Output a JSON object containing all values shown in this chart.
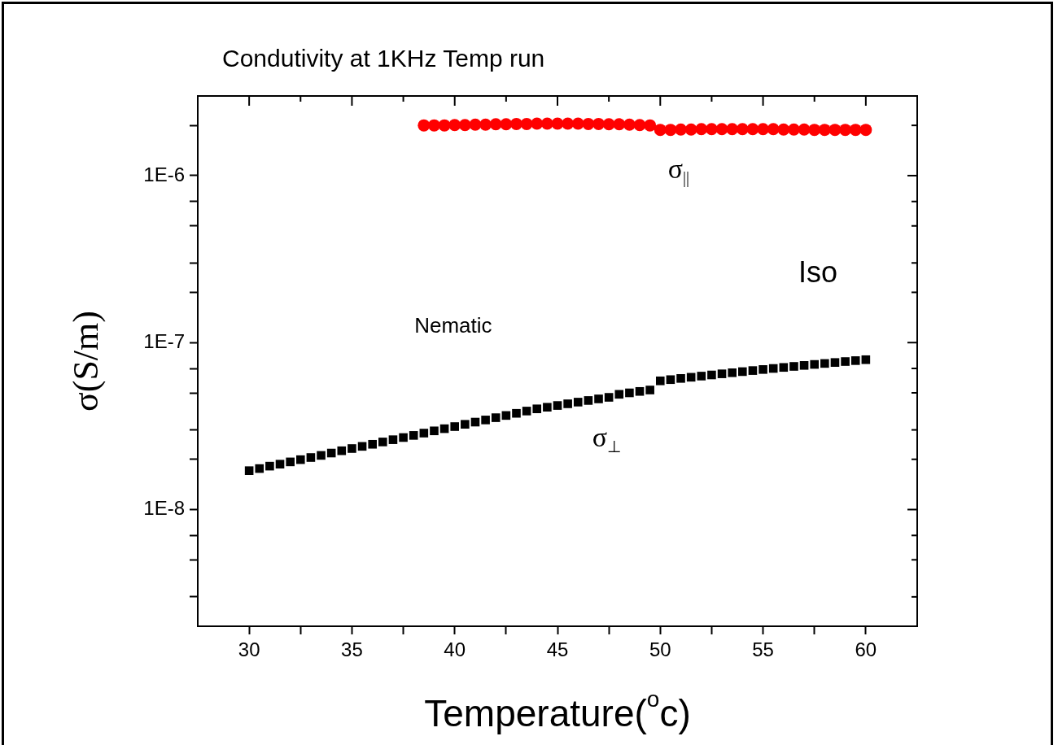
{
  "chart_data": {
    "type": "scatter",
    "title": "Condutivity at 1KHz Temp run",
    "xlabel": "Temperature($^{o}$c)",
    "ylabel": "σ(S/m)",
    "log": "y",
    "xlim": [
      27.5,
      62.5
    ],
    "xticks": [
      30,
      {
        "value": 32.5,
        "label": null
      },
      35,
      {
        "value": 37.5,
        "label": null
      },
      40,
      {
        "value": 42.5,
        "label": null
      },
      45,
      {
        "value": 47.5,
        "label": null
      },
      50,
      {
        "value": 52.5,
        "label": null
      },
      55,
      {
        "value": 57.5,
        "label": null
      },
      60
    ],
    "ylim": [
      2e-09,
      3e-06
    ],
    "yticks": [
      {
        "value": 3e-09,
        "label": null
      },
      {
        "value": 5e-09,
        "label": null
      },
      {
        "value": 7e-09,
        "label": null
      },
      {
        "value": 1e-08,
        "label": "1E-8"
      },
      {
        "value": 2e-08,
        "label": null
      },
      {
        "value": 3e-08,
        "label": null
      },
      {
        "value": 5e-08,
        "label": null
      },
      {
        "value": 7e-08,
        "label": null
      },
      {
        "value": 1e-07,
        "label": "1E-7"
      },
      {
        "value": 2e-07,
        "label": null
      },
      {
        "value": 3e-07,
        "label": null
      },
      {
        "value": 5e-07,
        "label": null
      },
      {
        "value": 7e-07,
        "label": null
      },
      {
        "value": 1e-06,
        "label": "1E-6"
      },
      {
        "value": 2e-06,
        "label": null
      }
    ],
    "series": [
      {
        "name": "σ$_{||}$",
        "color": "#ff0000",
        "marker": "circle",
        "x": [
          38.5,
          39,
          39.5,
          40,
          40.5,
          41,
          41.5,
          42,
          42.5,
          43,
          43.5,
          44,
          44.5,
          45,
          45.5,
          46,
          46.5,
          47,
          47.5,
          48,
          48.5,
          49,
          49.5,
          50,
          50.5,
          51,
          51.5,
          52,
          52.5,
          53,
          53.5,
          54,
          54.5,
          55,
          55.5,
          56,
          56.5,
          57,
          57.5,
          58,
          58.5,
          59,
          59.5,
          60
        ],
        "values": [
          2e-06,
          2e-06,
          2e-06,
          2.01e-06,
          2.01e-06,
          2.02e-06,
          2.02e-06,
          2.03e-06,
          2.03e-06,
          2.04e-06,
          2.04e-06,
          2.05e-06,
          2.05e-06,
          2.05e-06,
          2.05e-06,
          2.05e-06,
          2.04e-06,
          2.04e-06,
          2.03e-06,
          2.03e-06,
          2.02e-06,
          2.01e-06,
          2e-06,
          1.88e-06,
          1.88e-06,
          1.89e-06,
          1.89e-06,
          1.9e-06,
          1.9e-06,
          1.9e-06,
          1.9e-06,
          1.9e-06,
          1.9e-06,
          1.9e-06,
          1.9e-06,
          1.89e-06,
          1.89e-06,
          1.89e-06,
          1.88e-06,
          1.88e-06,
          1.88e-06,
          1.88e-06,
          1.88e-06,
          1.88e-06
        ]
      },
      {
        "name": "σ$_{⊥}$",
        "color": "#000000",
        "marker": "square",
        "x": [
          30,
          30.5,
          31,
          31.5,
          32,
          32.5,
          33,
          33.5,
          34,
          34.5,
          35,
          35.5,
          36,
          36.5,
          37,
          37.5,
          38,
          38.5,
          39,
          39.5,
          40,
          40.5,
          41,
          41.5,
          42,
          42.5,
          43,
          43.5,
          44,
          44.5,
          45,
          45.5,
          46,
          46.5,
          47,
          47.5,
          48,
          48.5,
          49,
          49.5,
          50,
          50.5,
          51,
          51.5,
          52,
          52.5,
          53,
          53.5,
          54,
          54.5,
          55,
          55.5,
          56,
          56.5,
          57,
          57.5,
          58,
          58.5,
          59,
          59.5,
          60
        ],
        "values": [
          1.71e-08,
          1.76e-08,
          1.82e-08,
          1.87e-08,
          1.93e-08,
          1.99e-08,
          2.05e-08,
          2.11e-08,
          2.18e-08,
          2.25e-08,
          2.32e-08,
          2.39e-08,
          2.46e-08,
          2.54e-08,
          2.62e-08,
          2.7e-08,
          2.78e-08,
          2.87e-08,
          2.96e-08,
          3.05e-08,
          3.14e-08,
          3.24e-08,
          3.34e-08,
          3.44e-08,
          3.55e-08,
          3.66e-08,
          3.77e-08,
          3.89e-08,
          4.01e-08,
          4.1e-08,
          4.2e-08,
          4.3e-08,
          4.4e-08,
          4.5e-08,
          4.6e-08,
          4.7e-08,
          4.9e-08,
          5e-08,
          5.1e-08,
          5.2e-08,
          5.9e-08,
          6e-08,
          6.1e-08,
          6.2e-08,
          6.3e-08,
          6.4e-08,
          6.5e-08,
          6.6e-08,
          6.7e-08,
          6.8e-08,
          6.9e-08,
          7e-08,
          7.1e-08,
          7.2e-08,
          7.3e-08,
          7.4e-08,
          7.5e-08,
          7.6e-08,
          7.7e-08,
          7.8e-08,
          7.9e-08
        ]
      }
    ],
    "annotations": [
      "Nematic",
      "Iso"
    ]
  }
}
